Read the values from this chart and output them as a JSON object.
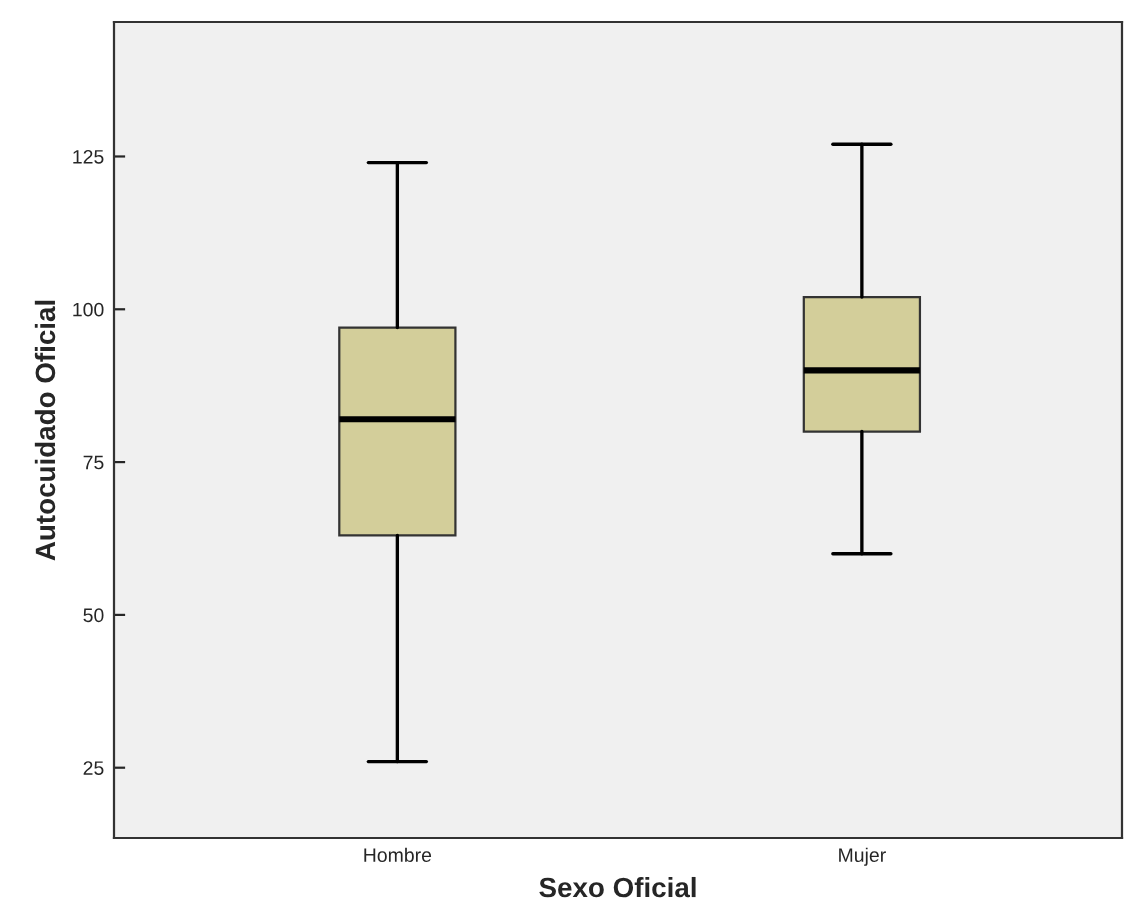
{
  "chart_data": {
    "type": "box",
    "xlabel": "Sexo Oficial",
    "ylabel": "Autocuidado Oficial",
    "categories": [
      "Hombre",
      "Mujer"
    ],
    "boxes": [
      {
        "low": 26,
        "q1": 63,
        "median": 82,
        "q3": 97,
        "high": 124
      },
      {
        "low": 60,
        "q1": 80,
        "median": 90,
        "q3": 102,
        "high": 127
      }
    ],
    "color": "#d3ce9a",
    "ylim": [
      13.5,
      147
    ],
    "yticks": [
      25,
      50,
      75,
      100,
      125
    ],
    "grid": false,
    "legend": false
  }
}
